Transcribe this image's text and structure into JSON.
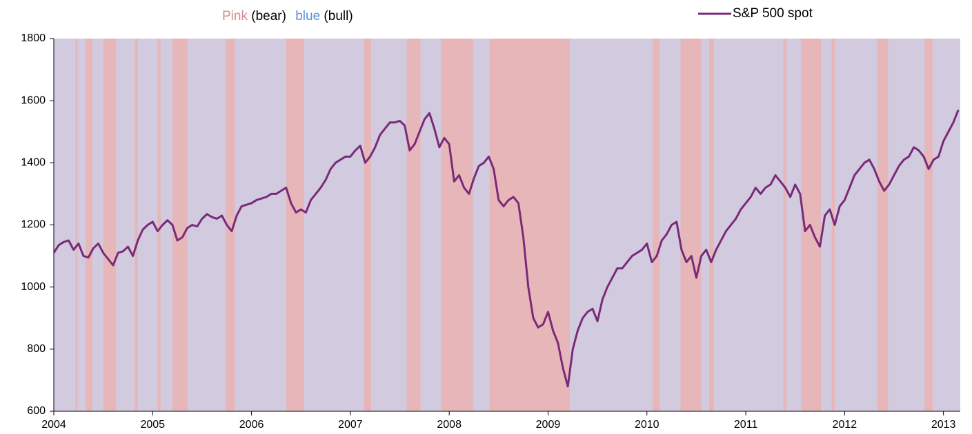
{
  "chart_data": {
    "type": "line",
    "title": {
      "bear_word": "Pink",
      "bear_note": "(bear)",
      "bull_word": "blue",
      "bull_note": "(bull)"
    },
    "bear_word_color": "#d98a8e",
    "bull_word_color": "#5a8fd8",
    "bear_color": "#e7b6b9",
    "bull_color": "#d2cadf",
    "bear_periods": [
      [
        2004.22,
        2004.24
      ],
      [
        2004.32,
        2004.39
      ],
      [
        2004.5,
        2004.63
      ],
      [
        2004.82,
        2004.85
      ],
      [
        2005.05,
        2005.08
      ],
      [
        2005.2,
        2005.35
      ],
      [
        2005.74,
        2005.83
      ],
      [
        2006.35,
        2006.53
      ],
      [
        2007.14,
        2007.21
      ],
      [
        2007.57,
        2007.71
      ],
      [
        2007.92,
        2008.24
      ],
      [
        2008.41,
        2009.22
      ],
      [
        2010.06,
        2010.13
      ],
      [
        2010.34,
        2010.55
      ],
      [
        2010.63,
        2010.68
      ],
      [
        2011.38,
        2011.41
      ],
      [
        2011.56,
        2011.76
      ],
      [
        2011.87,
        2011.9
      ],
      [
        2012.33,
        2012.44
      ],
      [
        2012.81,
        2012.89
      ]
    ],
    "x": [
      2004,
      2004.05,
      2004.1,
      2004.15,
      2004.2,
      2004.25,
      2004.3,
      2004.35,
      2004.4,
      2004.45,
      2004.5,
      2004.55,
      2004.6,
      2004.65,
      2004.7,
      2004.75,
      2004.8,
      2004.85,
      2004.9,
      2004.95,
      2005,
      2005.05,
      2005.1,
      2005.15,
      2005.2,
      2005.25,
      2005.3,
      2005.35,
      2005.4,
      2005.45,
      2005.5,
      2005.55,
      2005.6,
      2005.65,
      2005.7,
      2005.75,
      2005.8,
      2005.85,
      2005.9,
      2005.95,
      2006,
      2006.05,
      2006.1,
      2006.15,
      2006.2,
      2006.25,
      2006.3,
      2006.35,
      2006.4,
      2006.45,
      2006.5,
      2006.55,
      2006.6,
      2006.65,
      2006.7,
      2006.75,
      2006.8,
      2006.85,
      2006.9,
      2006.95,
      2007,
      2007.05,
      2007.1,
      2007.15,
      2007.2,
      2007.25,
      2007.3,
      2007.35,
      2007.4,
      2007.45,
      2007.5,
      2007.55,
      2007.6,
      2007.65,
      2007.7,
      2007.75,
      2007.8,
      2007.85,
      2007.9,
      2007.95,
      2008,
      2008.05,
      2008.1,
      2008.15,
      2008.2,
      2008.25,
      2008.3,
      2008.35,
      2008.4,
      2008.45,
      2008.5,
      2008.55,
      2008.6,
      2008.65,
      2008.7,
      2008.75,
      2008.8,
      2008.85,
      2008.9,
      2008.95,
      2009,
      2009.05,
      2009.1,
      2009.15,
      2009.2,
      2009.25,
      2009.3,
      2009.35,
      2009.4,
      2009.45,
      2009.5,
      2009.55,
      2009.6,
      2009.65,
      2009.7,
      2009.75,
      2009.8,
      2009.85,
      2009.9,
      2009.95,
      2010,
      2010.05,
      2010.1,
      2010.15,
      2010.2,
      2010.25,
      2010.3,
      2010.35,
      2010.4,
      2010.45,
      2010.5,
      2010.55,
      2010.6,
      2010.65,
      2010.7,
      2010.75,
      2010.8,
      2010.85,
      2010.9,
      2010.95,
      2011,
      2011.05,
      2011.1,
      2011.15,
      2011.2,
      2011.25,
      2011.3,
      2011.35,
      2011.4,
      2011.45,
      2011.5,
      2011.55,
      2011.6,
      2011.65,
      2011.7,
      2011.75,
      2011.8,
      2011.85,
      2011.9,
      2011.95,
      2012,
      2012.05,
      2012.1,
      2012.15,
      2012.2,
      2012.25,
      2012.3,
      2012.35,
      2012.4,
      2012.45,
      2012.5,
      2012.55,
      2012.6,
      2012.65,
      2012.7,
      2012.75,
      2012.8,
      2012.85,
      2012.9,
      2012.95,
      2013,
      2013.05,
      2013.1,
      2013.15
    ],
    "series": [
      {
        "name": "S&P 500 spot",
        "color": "#7a2a78",
        "values": [
          1110,
          1135,
          1145,
          1150,
          1120,
          1140,
          1100,
          1095,
          1125,
          1140,
          1110,
          1090,
          1070,
          1110,
          1115,
          1130,
          1100,
          1150,
          1185,
          1200,
          1210,
          1180,
          1200,
          1215,
          1200,
          1150,
          1160,
          1190,
          1200,
          1195,
          1220,
          1235,
          1225,
          1220,
          1230,
          1200,
          1180,
          1230,
          1260,
          1265,
          1270,
          1280,
          1285,
          1290,
          1300,
          1300,
          1310,
          1320,
          1270,
          1240,
          1250,
          1240,
          1280,
          1300,
          1320,
          1345,
          1380,
          1400,
          1410,
          1420,
          1420,
          1440,
          1455,
          1400,
          1420,
          1450,
          1490,
          1510,
          1530,
          1530,
          1535,
          1520,
          1440,
          1460,
          1500,
          1540,
          1560,
          1510,
          1450,
          1480,
          1460,
          1340,
          1360,
          1320,
          1300,
          1350,
          1390,
          1400,
          1420,
          1380,
          1280,
          1260,
          1280,
          1290,
          1270,
          1160,
          1000,
          900,
          870,
          880,
          920,
          860,
          820,
          740,
          680,
          800,
          860,
          900,
          920,
          930,
          890,
          960,
          1000,
          1030,
          1060,
          1060,
          1080,
          1100,
          1110,
          1120,
          1140,
          1080,
          1100,
          1150,
          1170,
          1200,
          1210,
          1120,
          1080,
          1100,
          1030,
          1100,
          1120,
          1080,
          1120,
          1150,
          1180,
          1200,
          1220,
          1250,
          1270,
          1290,
          1320,
          1300,
          1320,
          1330,
          1360,
          1340,
          1320,
          1290,
          1330,
          1300,
          1180,
          1200,
          1160,
          1130,
          1230,
          1250,
          1200,
          1260,
          1280,
          1320,
          1360,
          1380,
          1400,
          1410,
          1380,
          1340,
          1310,
          1330,
          1360,
          1390,
          1410,
          1420,
          1450,
          1440,
          1420,
          1380,
          1410,
          1420,
          1470,
          1500,
          1530,
          1570
        ]
      }
    ],
    "xlim": [
      2004,
      2013.17
    ],
    "xticks": [
      2004,
      2005,
      2006,
      2007,
      2008,
      2009,
      2010,
      2011,
      2012,
      2013
    ],
    "ylim": [
      600,
      1800
    ],
    "yticks": [
      600,
      800,
      1000,
      1200,
      1400,
      1600,
      1800
    ],
    "legend": "top-right"
  }
}
